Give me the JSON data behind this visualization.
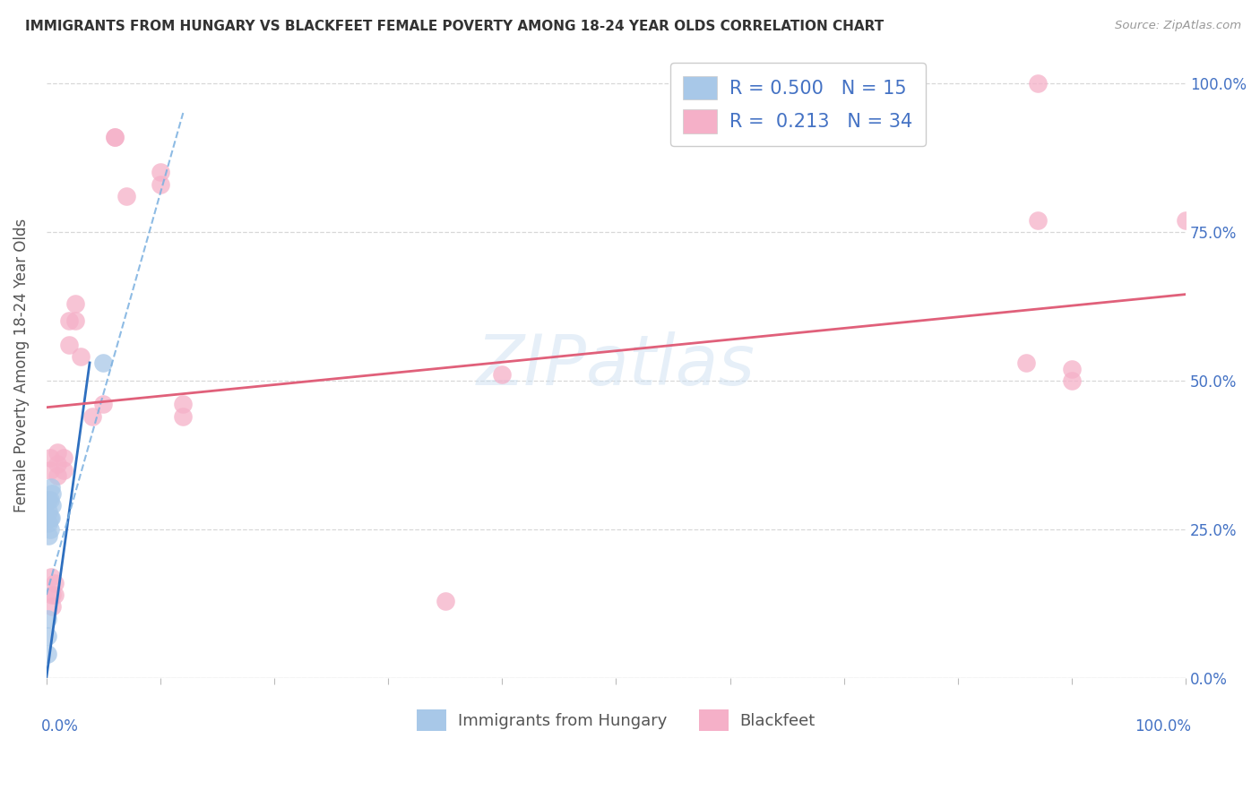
{
  "title": "IMMIGRANTS FROM HUNGARY VS BLACKFEET FEMALE POVERTY AMONG 18-24 YEAR OLDS CORRELATION CHART",
  "source": "Source: ZipAtlas.com",
  "ylabel": "Female Poverty Among 18-24 Year Olds",
  "watermark": "ZIPatlas",
  "legend_entries": [
    {
      "label": "R = 0.500   N = 15",
      "color": "#adc6e8"
    },
    {
      "label": "R =  0.213   N = 34",
      "color": "#f5b8cc"
    }
  ],
  "legend_bottom": [
    {
      "label": "Immigrants from Hungary",
      "color": "#adc6e8"
    },
    {
      "label": "Blackfeet",
      "color": "#f5b8cc"
    }
  ],
  "blue_scatter_x": [
    0.001,
    0.001,
    0.001,
    0.002,
    0.002,
    0.002,
    0.002,
    0.003,
    0.003,
    0.003,
    0.004,
    0.004,
    0.005,
    0.005,
    0.05
  ],
  "blue_scatter_y": [
    0.04,
    0.07,
    0.1,
    0.24,
    0.26,
    0.28,
    0.3,
    0.25,
    0.27,
    0.3,
    0.27,
    0.32,
    0.29,
    0.31,
    0.53
  ],
  "pink_scatter_x": [
    0.003,
    0.003,
    0.004,
    0.005,
    0.005,
    0.007,
    0.007,
    0.01,
    0.01,
    0.01,
    0.015,
    0.015,
    0.02,
    0.02,
    0.025,
    0.025,
    0.03,
    0.04,
    0.05,
    0.06,
    0.06,
    0.07,
    0.1,
    0.1,
    0.12,
    0.12,
    0.35,
    0.4,
    0.86,
    0.87,
    0.87,
    0.9,
    0.9,
    1.0
  ],
  "pink_scatter_y": [
    0.37,
    0.35,
    0.17,
    0.14,
    0.12,
    0.16,
    0.14,
    0.36,
    0.34,
    0.38,
    0.37,
    0.35,
    0.6,
    0.56,
    0.63,
    0.6,
    0.54,
    0.44,
    0.46,
    0.91,
    0.91,
    0.81,
    0.85,
    0.83,
    0.46,
    0.44,
    0.13,
    0.51,
    0.53,
    1.0,
    0.77,
    0.52,
    0.5,
    0.77
  ],
  "blue_solid_line_x": [
    0.0,
    0.038
  ],
  "blue_solid_line_y": [
    0.0,
    0.53
  ],
  "blue_dash_line_x": [
    0.0,
    0.12
  ],
  "blue_dash_line_y": [
    0.14,
    0.95
  ],
  "pink_line_x": [
    0.0,
    1.0
  ],
  "pink_line_y": [
    0.455,
    0.645
  ],
  "blue_dot_color": "#a8c8e8",
  "pink_dot_color": "#f5b0c8",
  "blue_solid_color": "#2e6fbf",
  "blue_dash_color": "#7ab0e0",
  "pink_line_color": "#e0607a",
  "background_color": "#ffffff",
  "grid_color": "#d8d8d8",
  "title_color": "#333333",
  "axis_label_color": "#4472c4",
  "right_tick_color": "#4472c4",
  "yticks": [
    0.0,
    0.25,
    0.5,
    0.75,
    1.0
  ],
  "ytick_labels": [
    "0.0%",
    "25.0%",
    "50.0%",
    "75.0%",
    "100.0%"
  ],
  "xlim": [
    0.0,
    1.0
  ],
  "ylim": [
    0.0,
    1.05
  ]
}
